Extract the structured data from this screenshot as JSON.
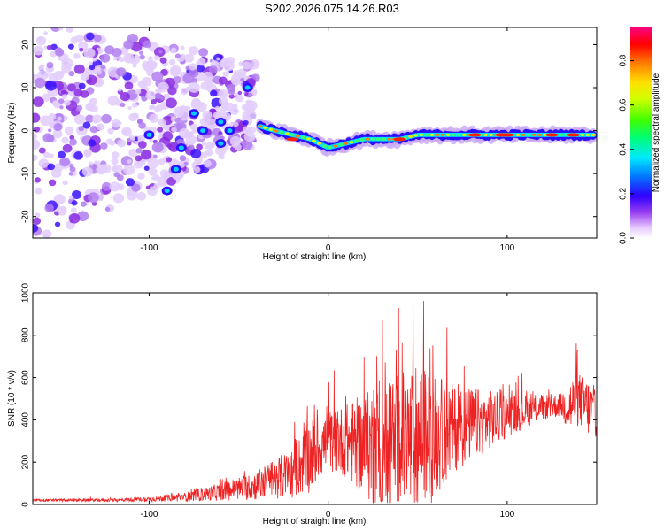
{
  "page": {
    "title": "S202.2026.075.14.26.R03"
  },
  "chart_data": [
    {
      "type": "heatmap",
      "title": "S202.2026.075.14.26.R03",
      "xlabel": "Height of straight line (km)",
      "ylabel": "Frequency (Hz)",
      "xlim": [
        -165,
        150
      ],
      "ylim": [
        -25,
        24
      ],
      "xticks": [
        -100,
        0,
        100
      ],
      "yticks": [
        -20,
        -10,
        0,
        10,
        20
      ],
      "colorbar": {
        "label": "Normalized spectral amplitude",
        "range": [
          0.0,
          0.95
        ],
        "ticks": [
          0.0,
          0.2,
          0.4,
          0.6,
          0.8
        ]
      },
      "ridge": {
        "x": [
          -38,
          -30,
          -20,
          -10,
          -5,
          0,
          10,
          20,
          30,
          40,
          50,
          60,
          70,
          80,
          90,
          100,
          110,
          120,
          130,
          140,
          148
        ],
        "freq": [
          1,
          0,
          -1,
          -2,
          -3,
          -4,
          -3,
          -2,
          -2,
          -2,
          -1,
          -1,
          -1,
          -1,
          -1,
          -1,
          -1,
          -1,
          -1,
          -1,
          -1
        ]
      },
      "noise_region_x": [
        -165,
        -40
      ]
    },
    {
      "type": "line",
      "xlabel": "Height of straight line (km)",
      "ylabel": "SNR (10 * v/v)",
      "xlim": [
        -165,
        150
      ],
      "ylim": [
        0,
        1000
      ],
      "xticks": [
        -100,
        0,
        100
      ],
      "yticks": [
        0,
        200,
        400,
        600,
        800,
        1000
      ],
      "color": "#ee2222",
      "envelope": {
        "x": [
          -165,
          -120,
          -100,
          -80,
          -60,
          -40,
          -20,
          -10,
          0,
          10,
          20,
          30,
          40,
          50,
          60,
          70,
          80,
          90,
          100,
          110,
          120,
          130,
          135,
          140,
          145,
          150
        ],
        "base": [
          20,
          20,
          25,
          35,
          60,
          90,
          150,
          230,
          300,
          300,
          280,
          260,
          280,
          300,
          320,
          360,
          380,
          400,
          420,
          440,
          460,
          470,
          460,
          500,
          460,
          420
        ],
        "amp": [
          8,
          10,
          15,
          30,
          60,
          100,
          170,
          250,
          200,
          250,
          350,
          450,
          500,
          520,
          420,
          300,
          250,
          200,
          150,
          110,
          90,
          80,
          200,
          180,
          200,
          150
        ]
      }
    }
  ]
}
